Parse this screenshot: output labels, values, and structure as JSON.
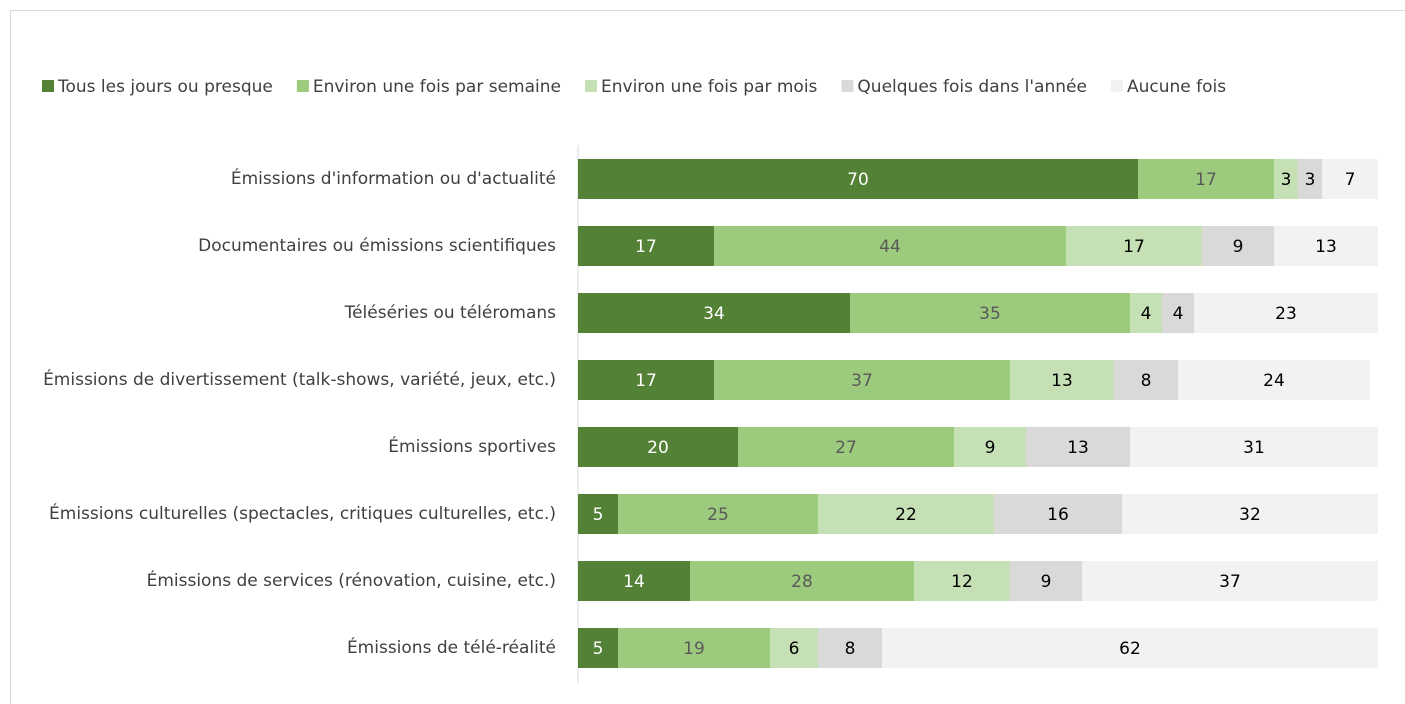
{
  "chart_data": {
    "type": "stacked-bar-horizontal",
    "categories": [
      "Émissions d'information ou d'actualité",
      "Documentaires ou émissions scientifiques",
      "Téléséries ou téléromans",
      "Émissions de divertissement (talk-shows, variété, jeux, etc.)",
      "Émissions sportives",
      "Émissions culturelles (spectacles, critiques culturelles, etc.)",
      "Émissions de services (rénovation, cuisine, etc.)",
      "Émissions de télé-réalité"
    ],
    "series": [
      {
        "name": "Tous les jours ou presque",
        "color": "#538135",
        "label_color": "#ffffff",
        "values": [
          70,
          17,
          34,
          17,
          20,
          5,
          14,
          5
        ]
      },
      {
        "name": "Environ une fois par semaine",
        "color": "#9dcb7d",
        "label_color": "#595959",
        "values": [
          17,
          44,
          35,
          37,
          27,
          25,
          28,
          19
        ]
      },
      {
        "name": "Environ une fois par mois",
        "color": "#c5e0b4",
        "label_color": "#000000",
        "values": [
          3,
          17,
          4,
          13,
          9,
          22,
          12,
          6
        ]
      },
      {
        "name": "Quelques fois dans l'année",
        "color": "#d9d9d9",
        "label_color": "#000000",
        "values": [
          3,
          9,
          4,
          8,
          13,
          16,
          9,
          8
        ]
      },
      {
        "name": "Aucune fois",
        "color": "#f2f2f2",
        "label_color": "#000000",
        "values": [
          7,
          13,
          23,
          24,
          31,
          32,
          37,
          62
        ]
      }
    ],
    "xlim": [
      0,
      100
    ],
    "legend": "top"
  }
}
